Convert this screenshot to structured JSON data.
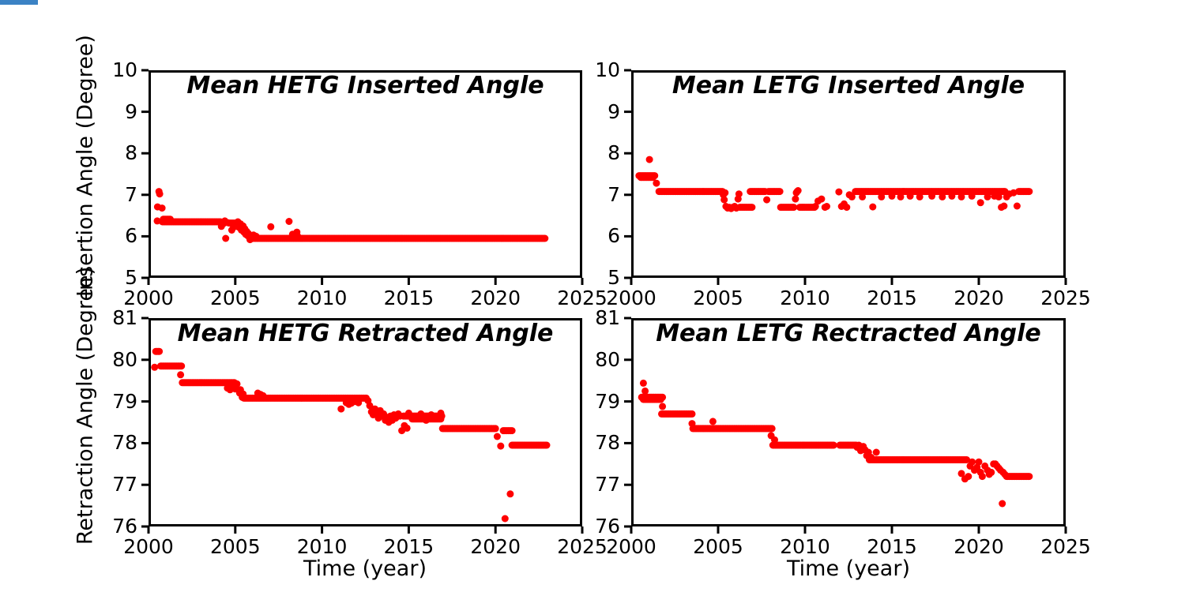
{
  "figure": {
    "background": "#ffffff",
    "axis_color": "#000000",
    "corner_accent_color": "#3b82c4"
  },
  "axes": {
    "xlabel": "Time (year)",
    "ylabel_top": "Insertion Angle (Degree)",
    "ylabel_bottom": "Retraction Angle (Degree)"
  },
  "chart_data": [
    {
      "type": "scatter",
      "title": "Mean HETG Inserted Angle",
      "xlabel": "",
      "ylabel": "Insertion Angle (Degree)",
      "xlim": [
        2000,
        2025
      ],
      "ylim": [
        5,
        10
      ],
      "xticks": [
        2000,
        2005,
        2010,
        2015,
        2020,
        2025
      ],
      "yticks": [
        5,
        6,
        7,
        8,
        9,
        10
      ],
      "grid": false,
      "legend": null,
      "marker": {
        "color": "#ff0000",
        "radius": 4.5
      },
      "runs": [
        {
          "x0": 2000.8,
          "x1": 2004.15,
          "y": 6.35
        },
        {
          "x0": 2000.85,
          "x1": 2001.25,
          "y": 6.41
        },
        {
          "x0": 2004.65,
          "x1": 2005.05,
          "y": 6.32
        },
        {
          "x0": 2005.9,
          "x1": 2022.85,
          "y": 5.95
        }
      ],
      "points": [
        [
          2000.6,
          7.08
        ],
        [
          2000.64,
          7.02
        ],
        [
          2000.52,
          6.71
        ],
        [
          2000.78,
          6.68
        ],
        [
          2000.5,
          6.37
        ],
        [
          2004.2,
          6.24
        ],
        [
          2004.3,
          6.3
        ],
        [
          2004.4,
          6.37
        ],
        [
          2004.45,
          5.95
        ],
        [
          2004.55,
          6.33
        ],
        [
          2004.8,
          6.15
        ],
        [
          2004.9,
          6.22
        ],
        [
          2005.1,
          6.28
        ],
        [
          2005.15,
          6.35
        ],
        [
          2005.2,
          6.22
        ],
        [
          2005.3,
          6.3
        ],
        [
          2005.35,
          6.15
        ],
        [
          2005.45,
          6.25
        ],
        [
          2005.5,
          6.1
        ],
        [
          2005.55,
          6.18
        ],
        [
          2005.6,
          6.05
        ],
        [
          2005.65,
          6.12
        ],
        [
          2005.7,
          6.02
        ],
        [
          2005.75,
          6.07
        ],
        [
          2005.8,
          5.98
        ],
        [
          2005.85,
          5.92
        ],
        [
          2006.05,
          6.03
        ],
        [
          2006.2,
          6.0
        ],
        [
          2007.05,
          6.23
        ],
        [
          2008.1,
          6.36
        ],
        [
          2008.3,
          6.05
        ],
        [
          2008.35,
          6.03
        ],
        [
          2008.55,
          6.1
        ],
        [
          2008.6,
          6.0
        ]
      ]
    },
    {
      "type": "scatter",
      "title": "Mean LETG Inserted Angle",
      "xlabel": "",
      "ylabel": "Insertion Angle (Degree)",
      "xlim": [
        2000,
        2025
      ],
      "ylim": [
        5,
        10
      ],
      "xticks": [
        2000,
        2005,
        2010,
        2015,
        2020,
        2025
      ],
      "yticks": [
        5,
        6,
        7,
        8,
        9,
        10
      ],
      "grid": false,
      "legend": null,
      "marker": {
        "color": "#ff0000",
        "radius": 4.5
      },
      "runs": [
        {
          "x0": 2000.45,
          "x1": 2001.35,
          "y": 7.46
        },
        {
          "x0": 2000.55,
          "x1": 2001.25,
          "y": 7.42
        },
        {
          "x0": 2001.6,
          "x1": 2005.25,
          "y": 7.08
        },
        {
          "x0": 2006.25,
          "x1": 2006.95,
          "y": 6.7
        },
        {
          "x0": 2006.85,
          "x1": 2007.7,
          "y": 7.08
        },
        {
          "x0": 2007.9,
          "x1": 2008.55,
          "y": 7.08
        },
        {
          "x0": 2008.6,
          "x1": 2009.35,
          "y": 6.7
        },
        {
          "x0": 2009.7,
          "x1": 2010.55,
          "y": 6.7
        },
        {
          "x0": 2012.9,
          "x1": 2021.5,
          "y": 7.08
        },
        {
          "x0": 2022.3,
          "x1": 2022.9,
          "y": 7.08
        }
      ],
      "points": [
        [
          2001.05,
          7.85
        ],
        [
          2001.45,
          7.28
        ],
        [
          2005.3,
          7.0
        ],
        [
          2005.35,
          6.88
        ],
        [
          2005.4,
          7.05
        ],
        [
          2005.45,
          6.72
        ],
        [
          2005.55,
          6.68
        ],
        [
          2005.65,
          6.7
        ],
        [
          2005.75,
          6.67
        ],
        [
          2005.85,
          6.7
        ],
        [
          2005.95,
          6.72
        ],
        [
          2006.05,
          6.68
        ],
        [
          2006.15,
          6.9
        ],
        [
          2006.2,
          7.02
        ],
        [
          2007.8,
          6.88
        ],
        [
          2009.45,
          6.9
        ],
        [
          2009.5,
          7.05
        ],
        [
          2009.55,
          7.08
        ],
        [
          2009.6,
          7.1
        ],
        [
          2010.6,
          6.72
        ],
        [
          2010.75,
          6.85
        ],
        [
          2010.95,
          6.9
        ],
        [
          2011.15,
          6.7
        ],
        [
          2011.25,
          6.72
        ],
        [
          2011.95,
          7.07
        ],
        [
          2012.1,
          6.72
        ],
        [
          2012.25,
          6.78
        ],
        [
          2012.4,
          6.7
        ],
        [
          2012.55,
          7.0
        ],
        [
          2012.7,
          6.95
        ],
        [
          2013.3,
          6.95
        ],
        [
          2013.9,
          6.71
        ],
        [
          2014.4,
          6.95
        ],
        [
          2015.0,
          6.97
        ],
        [
          2015.5,
          6.95
        ],
        [
          2016.05,
          6.97
        ],
        [
          2016.6,
          6.95
        ],
        [
          2017.3,
          6.97
        ],
        [
          2017.9,
          6.95
        ],
        [
          2018.45,
          6.97
        ],
        [
          2019.0,
          6.95
        ],
        [
          2019.6,
          6.97
        ],
        [
          2020.1,
          6.81
        ],
        [
          2020.5,
          6.95
        ],
        [
          2020.9,
          6.97
        ],
        [
          2021.0,
          7.0
        ],
        [
          2021.15,
          6.95
        ],
        [
          2021.3,
          6.7
        ],
        [
          2021.45,
          6.73
        ],
        [
          2021.6,
          6.95
        ],
        [
          2021.75,
          7.02
        ],
        [
          2022.0,
          7.05
        ],
        [
          2022.2,
          6.73
        ]
      ]
    },
    {
      "type": "scatter",
      "title": "Mean HETG Retracted Angle",
      "xlabel": "Time (year)",
      "ylabel": "Retraction Angle (Degree)",
      "xlim": [
        2000,
        2025
      ],
      "ylim": [
        76,
        81
      ],
      "xticks": [
        2000,
        2005,
        2010,
        2015,
        2020,
        2025
      ],
      "yticks": [
        76,
        77,
        78,
        79,
        80,
        81
      ],
      "grid": false,
      "legend": null,
      "marker": {
        "color": "#ff0000",
        "radius": 4.5
      },
      "runs": [
        {
          "x0": 2000.42,
          "x1": 2000.62,
          "y": 80.2
        },
        {
          "x0": 2000.7,
          "x1": 2001.9,
          "y": 79.85
        },
        {
          "x0": 2001.95,
          "x1": 2004.95,
          "y": 79.45
        },
        {
          "x0": 2005.5,
          "x1": 2012.55,
          "y": 79.08
        },
        {
          "x0": 2014.7,
          "x1": 2016.9,
          "y": 78.65
        },
        {
          "x0": 2015.2,
          "x1": 2016.85,
          "y": 78.58
        },
        {
          "x0": 2016.95,
          "x1": 2020.0,
          "y": 78.35
        },
        {
          "x0": 2020.45,
          "x1": 2020.95,
          "y": 78.3
        },
        {
          "x0": 2020.95,
          "x1": 2022.95,
          "y": 77.95
        }
      ],
      "points": [
        [
          2000.35,
          79.82
        ],
        [
          2001.85,
          79.64
        ],
        [
          2004.55,
          79.32
        ],
        [
          2004.7,
          79.28
        ],
        [
          2004.8,
          79.4
        ],
        [
          2004.9,
          79.35
        ],
        [
          2005.0,
          79.3
        ],
        [
          2005.1,
          79.42
        ],
        [
          2005.25,
          79.2
        ],
        [
          2005.3,
          79.28
        ],
        [
          2005.4,
          79.1
        ],
        [
          2005.45,
          79.18
        ],
        [
          2006.3,
          79.2
        ],
        [
          2006.45,
          79.17
        ],
        [
          2006.6,
          79.14
        ],
        [
          2011.1,
          78.82
        ],
        [
          2011.4,
          78.97
        ],
        [
          2011.55,
          78.93
        ],
        [
          2011.7,
          78.96
        ],
        [
          2011.9,
          79.0
        ],
        [
          2012.1,
          78.97
        ],
        [
          2012.65,
          79.02
        ],
        [
          2012.75,
          78.9
        ],
        [
          2012.85,
          78.75
        ],
        [
          2012.95,
          78.68
        ],
        [
          2013.05,
          78.82
        ],
        [
          2013.15,
          78.72
        ],
        [
          2013.25,
          78.6
        ],
        [
          2013.35,
          78.78
        ],
        [
          2013.45,
          78.65
        ],
        [
          2013.55,
          78.7
        ],
        [
          2013.65,
          78.55
        ],
        [
          2013.75,
          78.62
        ],
        [
          2013.85,
          78.5
        ],
        [
          2013.95,
          78.65
        ],
        [
          2014.05,
          78.55
        ],
        [
          2014.15,
          78.68
        ],
        [
          2014.25,
          78.6
        ],
        [
          2014.4,
          78.7
        ],
        [
          2014.5,
          78.65
        ],
        [
          2014.6,
          78.3
        ],
        [
          2014.75,
          78.42
        ],
        [
          2014.9,
          78.36
        ],
        [
          2015.0,
          78.72
        ],
        [
          2015.35,
          78.6
        ],
        [
          2015.7,
          78.7
        ],
        [
          2016.0,
          78.55
        ],
        [
          2016.3,
          78.68
        ],
        [
          2016.6,
          78.6
        ],
        [
          2016.85,
          78.72
        ],
        [
          2020.1,
          78.16
        ],
        [
          2020.3,
          77.93
        ],
        [
          2020.85,
          76.78
        ],
        [
          2020.55,
          76.19
        ]
      ]
    },
    {
      "type": "scatter",
      "title": "Mean LETG Rectracted Angle",
      "xlabel": "Time (year)",
      "ylabel": "Retraction Angle (Degree)",
      "xlim": [
        2000,
        2025
      ],
      "ylim": [
        76,
        81
      ],
      "xticks": [
        2000,
        2005,
        2010,
        2015,
        2020,
        2025
      ],
      "yticks": [
        76,
        77,
        78,
        79,
        80,
        81
      ],
      "grid": false,
      "legend": null,
      "marker": {
        "color": "#ff0000",
        "radius": 4.5
      },
      "runs": [
        {
          "x0": 2000.6,
          "x1": 2001.8,
          "y": 79.1
        },
        {
          "x0": 2000.7,
          "x1": 2001.7,
          "y": 79.05
        },
        {
          "x0": 2001.75,
          "x1": 2003.5,
          "y": 78.7
        },
        {
          "x0": 2003.55,
          "x1": 2008.1,
          "y": 78.35
        },
        {
          "x0": 2008.15,
          "x1": 2011.65,
          "y": 77.95
        },
        {
          "x0": 2012.0,
          "x1": 2012.95,
          "y": 77.95
        },
        {
          "x0": 2013.75,
          "x1": 2019.3,
          "y": 77.6
        },
        {
          "x0": 2021.6,
          "x1": 2022.9,
          "y": 77.2
        }
      ],
      "points": [
        [
          2000.7,
          79.44
        ],
        [
          2000.8,
          79.25
        ],
        [
          2001.8,
          78.88
        ],
        [
          2003.5,
          78.47
        ],
        [
          2004.7,
          78.52
        ],
        [
          2008.05,
          78.18
        ],
        [
          2008.25,
          78.08
        ],
        [
          2013.0,
          77.9
        ],
        [
          2013.1,
          77.95
        ],
        [
          2013.2,
          77.82
        ],
        [
          2013.35,
          77.92
        ],
        [
          2013.45,
          77.84
        ],
        [
          2013.55,
          77.7
        ],
        [
          2013.65,
          77.78
        ],
        [
          2013.7,
          77.6
        ],
        [
          2013.8,
          77.66
        ],
        [
          2014.1,
          77.78
        ],
        [
          2019.0,
          77.27
        ],
        [
          2019.2,
          77.14
        ],
        [
          2019.4,
          77.2
        ],
        [
          2019.5,
          77.45
        ],
        [
          2019.62,
          77.55
        ],
        [
          2019.75,
          77.35
        ],
        [
          2019.9,
          77.42
        ],
        [
          2020.0,
          77.55
        ],
        [
          2020.1,
          77.3
        ],
        [
          2020.2,
          77.2
        ],
        [
          2020.35,
          77.45
        ],
        [
          2020.5,
          77.35
        ],
        [
          2020.6,
          77.25
        ],
        [
          2020.72,
          77.3
        ],
        [
          2020.85,
          77.5
        ],
        [
          2020.95,
          77.5
        ],
        [
          2021.05,
          77.45
        ],
        [
          2021.15,
          77.4
        ],
        [
          2021.25,
          77.35
        ],
        [
          2021.4,
          77.3
        ],
        [
          2021.5,
          77.25
        ],
        [
          2021.35,
          76.55
        ]
      ]
    }
  ]
}
